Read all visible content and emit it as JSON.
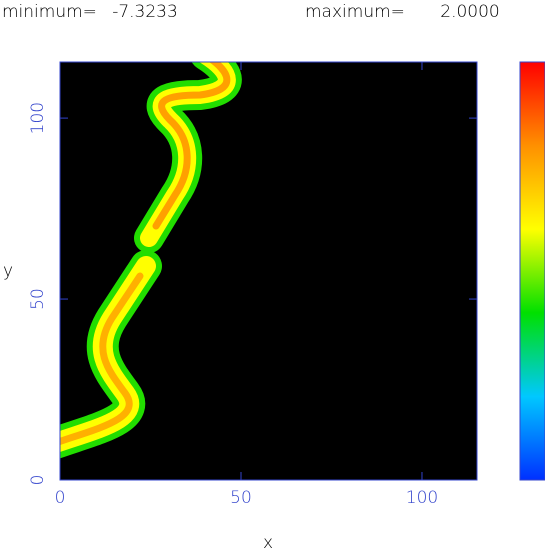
{
  "chart_data": {
    "type": "image",
    "min_label": "minimum=",
    "min": -7.3233,
    "max_label": "maximum=",
    "max": {
      "value": 2,
      "label": "2.0000"
    },
    "x_label": "x",
    "y_label": "y",
    "xlim": [
      0,
      115.2
    ],
    "ylim": [
      0,
      115.5
    ],
    "xticks": [
      0,
      50,
      100
    ],
    "yticks": [
      0,
      50,
      100
    ],
    "axis_color": "#3344cc",
    "colormap": [
      "#0030ff",
      "#00c8ff",
      "#00e000",
      "#ffff00",
      "#ff9000",
      "#ff0000"
    ]
  }
}
